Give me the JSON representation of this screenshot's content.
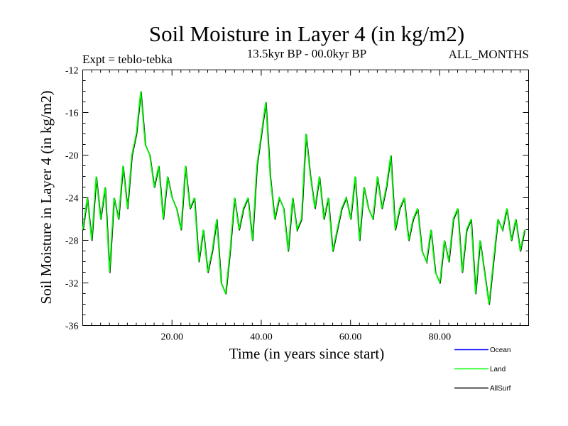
{
  "chart_data": {
    "type": "line",
    "title": "Soil Moisture in Layer 4 (in kg/m2)",
    "subtitle_left": "Expt = teblo-tebka",
    "subtitle_center": "13.5kyr BP - 00.0kyr BP",
    "subtitle_right": "ALL_MONTHS",
    "xlabel": "Time (in years since start)",
    "ylabel": "Soil Moisture in Layer 4 (in kg/m2)",
    "xlim": [
      0,
      99.9
    ],
    "ylim": [
      -36,
      -12
    ],
    "x_ticks": [
      20,
      40,
      60,
      80
    ],
    "x_tick_labels": [
      "20.00",
      "40.00",
      "60.00",
      "80.00"
    ],
    "y_ticks": [
      -12,
      -16,
      -20,
      -24,
      -28,
      -32,
      -36
    ],
    "y_tick_labels": [
      "-12",
      "-16",
      "-20",
      "-24",
      "-28",
      "-32",
      "-36"
    ],
    "legend": [
      "Ocean",
      "Land",
      "AllSurf"
    ],
    "legend_position": "bottom-right",
    "colors": {
      "ocean": "#0000ff",
      "land": "#00ff00",
      "allsurf": "#000000"
    },
    "series": [
      {
        "name": "Land",
        "x": [
          0,
          1,
          2,
          3,
          4,
          5,
          6,
          7,
          8,
          9,
          10,
          11,
          12,
          13,
          14,
          15,
          16,
          17,
          18,
          19,
          20,
          21,
          22,
          23,
          24,
          25,
          26,
          27,
          28,
          29,
          30,
          31,
          32,
          33,
          34,
          35,
          36,
          37,
          38,
          39,
          40,
          41,
          42,
          43,
          44,
          45,
          46,
          47,
          48,
          49,
          50,
          51,
          52,
          53,
          54,
          55,
          56,
          57,
          58,
          59,
          60,
          61,
          62,
          63,
          64,
          65,
          66,
          67,
          68,
          69,
          70,
          71,
          72,
          73,
          74,
          75,
          76,
          77,
          78,
          79,
          80,
          81,
          82,
          83,
          84,
          85,
          86,
          87,
          88,
          89,
          90,
          91,
          92,
          93,
          94,
          95,
          96,
          97,
          98,
          99
        ],
        "values": [
          -27,
          -24,
          -28,
          -22,
          -26,
          -23,
          -31,
          -24,
          -26,
          -21,
          -25,
          -20,
          -18,
          -14,
          -19,
          -20,
          -23,
          -21,
          -26,
          -22,
          -24,
          -25,
          -27,
          -21,
          -25,
          -24,
          -30,
          -27,
          -31,
          -29,
          -26,
          -32,
          -33,
          -29,
          -24,
          -27,
          -25,
          -24,
          -28,
          -21,
          -18,
          -15,
          -22,
          -26,
          -24,
          -25,
          -29,
          -24,
          -27,
          -26,
          -18,
          -22,
          -25,
          -22,
          -26,
          -24,
          -29,
          -27,
          -25,
          -24,
          -26,
          -22,
          -28,
          -23,
          -25,
          -26,
          -22,
          -25,
          -23,
          -20,
          -27,
          -25,
          -24,
          -28,
          -26,
          -25,
          -29,
          -30,
          -27,
          -31,
          -32,
          -28,
          -30,
          -26,
          -25,
          -31,
          -27,
          -26,
          -33,
          -28,
          -31,
          -34,
          -30,
          -26,
          -27,
          -25,
          -28,
          -26,
          -29,
          -27
        ]
      },
      {
        "name": "AllSurf",
        "x": [
          0,
          1,
          2,
          3,
          4,
          5,
          6,
          7,
          8,
          9,
          10,
          11,
          12,
          13,
          14,
          15,
          16,
          17,
          18,
          19,
          20,
          21,
          22,
          23,
          24,
          25,
          26,
          27,
          28,
          29,
          30,
          31,
          32,
          33,
          34,
          35,
          36,
          37,
          38,
          39,
          40,
          41,
          42,
          43,
          44,
          45,
          46,
          47,
          48,
          49,
          50,
          51,
          52,
          53,
          54,
          55,
          56,
          57,
          58,
          59,
          60,
          61,
          62,
          63,
          64,
          65,
          66,
          67,
          68,
          69,
          70,
          71,
          72,
          73,
          74,
          75,
          76,
          77,
          78,
          79,
          80,
          81,
          82,
          83,
          84,
          85,
          86,
          87,
          88,
          89,
          90,
          91,
          92,
          93,
          94,
          95,
          96,
          97,
          98,
          99
        ],
        "values": [
          -27,
          -24,
          -28,
          -22,
          -26,
          -23,
          -31,
          -24,
          -26,
          -21,
          -25,
          -20,
          -18,
          -14,
          -19,
          -20,
          -23,
          -21,
          -26,
          -22,
          -24,
          -25,
          -27,
          -21,
          -25,
          -24,
          -30,
          -27,
          -31,
          -29,
          -26,
          -32,
          -33,
          -29,
          -24,
          -27,
          -25,
          -24,
          -28,
          -21,
          -18,
          -15,
          -22,
          -26,
          -24,
          -25,
          -29,
          -24,
          -27,
          -26,
          -18,
          -22,
          -25,
          -22,
          -26,
          -24,
          -29,
          -27,
          -25,
          -24,
          -26,
          -22,
          -28,
          -23,
          -25,
          -26,
          -22,
          -25,
          -23,
          -20,
          -27,
          -25,
          -24,
          -28,
          -26,
          -25,
          -29,
          -30,
          -27,
          -31,
          -32,
          -28,
          -30,
          -26,
          -25,
          -31,
          -27,
          -26,
          -33,
          -28,
          -31,
          -34,
          -30,
          -26,
          -27,
          -25,
          -28,
          -26,
          -29,
          -27
        ]
      }
    ]
  }
}
